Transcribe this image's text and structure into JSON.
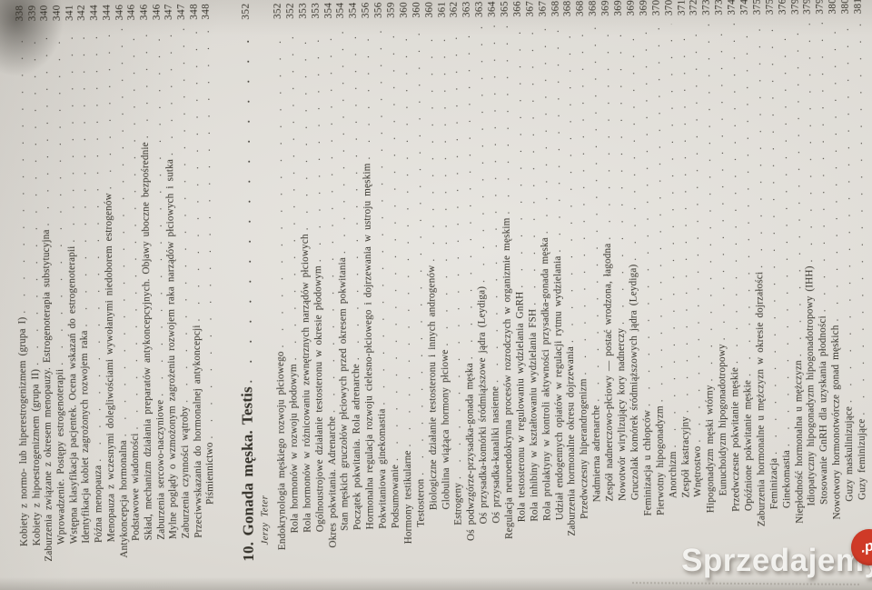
{
  "colors": {
    "paper": "#dcd9d3",
    "ink": "#343129",
    "watermark_badge": "#cf3a27"
  },
  "watermark": {
    "brand": "Sprzedajemy",
    "suffix": ".pl"
  },
  "toc": {
    "chapter": {
      "title": "10. Gonada męska. Testis",
      "page": "352",
      "author": "Jerzy Teter"
    },
    "block1": [
      {
        "title": "Kobiety z normo- lub hiperestrogenizmem (grupa I)",
        "page": "338",
        "indent": 1
      },
      {
        "title": "Kobiety z hipoestrogenizmem (grupa II)",
        "page": "339",
        "indent": 1
      },
      {
        "title": "Zaburzenia związane z okresem menopauzy. Estrogenoterapia substytucyjna",
        "page": "340",
        "indent": 0
      },
      {
        "title": "Wprowadzenie. Postępy estrogenoterapii",
        "page": "340",
        "indent": 1
      },
      {
        "title": "Wstępna klasyfikacja pacjentek. Ocena wskazań do estrogenoterapii",
        "page": "341",
        "indent": 1
      },
      {
        "title": "Identyfikacja kobiet zagrożonych rozwojem raka",
        "page": "342",
        "indent": 1
      },
      {
        "title": "Późna menopauza",
        "page": "344",
        "indent": 1
      },
      {
        "title": "Menopauza z wczesnymi dolegliwościami wywołanymi niedoborem estrogenów",
        "page": "344",
        "indent": 1
      },
      {
        "title": "Antykoncepcja hormonalna",
        "page": "346",
        "indent": 0
      },
      {
        "title": "Podstawowe wiadomości",
        "page": "346",
        "indent": 1
      },
      {
        "title": "Skład, mechanizm działania preparatów antykoncepcyjnych. Objawy uboczne bezpośrednie",
        "page": "346",
        "indent": 1
      },
      {
        "title": "Zaburzenia sercowo-naczyniowe",
        "page": "346",
        "indent": 1
      },
      {
        "title": "Mylne poglądy o wzmożonym zagrożeniu rozwojem raka narządów płciowych i sutka",
        "page": "347",
        "indent": 1
      },
      {
        "title": "Zaburzenia czynności wątroby",
        "page": "347",
        "indent": 1
      },
      {
        "title": "Przeciwwskazania do hormonalnej antykoncepcji",
        "page": "348",
        "indent": 1
      },
      {
        "title": "Piśmiennictwo",
        "page": "348",
        "indent": 3
      }
    ],
    "block2": [
      {
        "title": "Endokrynologia męskiego rozwoju płciowego",
        "page": "352",
        "indent": 0
      },
      {
        "title": "Rola hormonów w rozwoju płodowym",
        "page": "352",
        "indent": 1
      },
      {
        "title": "Rola hormonów w różnicowaniu zewnętrznych narządów płciowych",
        "page": "353",
        "indent": 1
      },
      {
        "title": "Ogólnoustrojowe działanie testosteronu w okresie płodowym",
        "page": "353",
        "indent": 1
      },
      {
        "title": "Okres pokwitania. Adrenarche",
        "page": "354",
        "indent": 0
      },
      {
        "title": "Stan męskich gruczołów płciowych przed okresem pokwitania",
        "page": "354",
        "indent": 1
      },
      {
        "title": "Początek pokwitania. Rola adrenarche",
        "page": "354",
        "indent": 1
      },
      {
        "title": "Hormonalna regulacja rozwoju cielesno-płciowego i dojrzewania w ustroju męskim",
        "page": "356",
        "indent": 1
      },
      {
        "title": "Pokwitaniowa ginekomastia",
        "page": "356",
        "indent": 1
      },
      {
        "title": "Podsumowanie",
        "page": "359",
        "indent": 1
      },
      {
        "title": "Hormony testikularne",
        "page": "360",
        "indent": 0
      },
      {
        "title": "Testosteron",
        "page": "360",
        "indent": 1
      },
      {
        "title": "Biologiczne działanie testosteronu i innych androgenów",
        "page": "360",
        "indent": 2
      },
      {
        "title": "Globulina wiążąca hormony płciowe",
        "page": "361",
        "indent": 2
      },
      {
        "title": "Estrogeny",
        "page": "362",
        "indent": 1
      },
      {
        "title": "Oś podwzgórze-przysadka-gonada męska",
        "page": "363",
        "indent": 0
      },
      {
        "title": "Oś przysadka-komórki śródmiąższowe jądra (Leydiga)",
        "page": "363",
        "indent": 1
      },
      {
        "title": "Oś przysadka-kanaliki nasienne",
        "page": "364",
        "indent": 1
      },
      {
        "title": "Regulacja neuroendokrynna procesów rozrodczych w organizmie męskim",
        "page": "365",
        "indent": 0
      },
      {
        "title": "Rola testosteronu w regulowaniu wydzielania GnRH",
        "page": "366",
        "indent": 1
      },
      {
        "title": "Rola inhibiny w kształtowaniu wydzielania FSH",
        "page": "367",
        "indent": 1
      },
      {
        "title": "Rola prolaktyny w kontroli aktywności przysadka-gonada męska",
        "page": "367",
        "indent": 1
      },
      {
        "title": "Udział endogennych opiatów w regulacji rytmu wydzielania",
        "page": "368",
        "indent": 1
      },
      {
        "title": "Zaburzenia hormonalne okresu dojrzewania",
        "page": "368",
        "indent": 0
      },
      {
        "title": "Przedwczesny hiperandrogenizm",
        "page": "368",
        "indent": 1
      },
      {
        "title": "Nadmierna adrenarche",
        "page": "368",
        "indent": 2
      },
      {
        "title": "Zespół nadnerczowo-płciowy — postać wrodzona, łagodna",
        "page": "369",
        "indent": 2
      },
      {
        "title": "Nowotwór wirylizujący kory nadnerczy",
        "page": "369",
        "indent": 2
      },
      {
        "title": "Gruczolak komórek śródmiąższowych jądra (Leydiga)",
        "page": "369",
        "indent": 2
      },
      {
        "title": "Feminizacja u chłopców",
        "page": "369",
        "indent": 1
      },
      {
        "title": "Pierwotny hipogonadyzm",
        "page": "370",
        "indent": 1
      },
      {
        "title": "Anorchizm",
        "page": "370",
        "indent": 2
      },
      {
        "title": "Zespół kastracyjny",
        "page": "371",
        "indent": 2
      },
      {
        "title": "Wnętrostwo",
        "page": "372",
        "indent": 2
      },
      {
        "title": "Hipogonadyzm męski wtórny",
        "page": "373",
        "indent": 1
      },
      {
        "title": "Eunuchoidyzm hipogonadotropowy",
        "page": "373",
        "indent": 2
      },
      {
        "title": "Przedwczesne pokwitanie męskie",
        "page": "374",
        "indent": 1
      },
      {
        "title": "Opóźnione pokwitanie męskie",
        "page": "374",
        "indent": 1
      },
      {
        "title": "Zaburzenia hormonalne u mężczyzn w okresie dojrzałości",
        "page": "375",
        "indent": 0
      },
      {
        "title": "Feminizacja",
        "page": "375",
        "indent": 1
      },
      {
        "title": "Ginekomastia",
        "page": "376",
        "indent": 1
      },
      {
        "title": "Niepłodność hormonalna u mężczyzn",
        "page": "379",
        "indent": 0
      },
      {
        "title": "Idiopatyczny hipogonadyzm hipogonadotropowy (IHH)",
        "page": "379",
        "indent": 1
      },
      {
        "title": "Stosowanie GnRH dla uzyskania płodności",
        "page": "379",
        "indent": 1
      },
      {
        "title": "Nowotwory hormonotwórcze gonad męskich",
        "page": "380",
        "indent": 0
      },
      {
        "title": "Guzy maskulinizujące",
        "page": "380",
        "indent": 1
      },
      {
        "title": "Guzy feminizujące",
        "page": "381",
        "indent": 1
      }
    ]
  }
}
